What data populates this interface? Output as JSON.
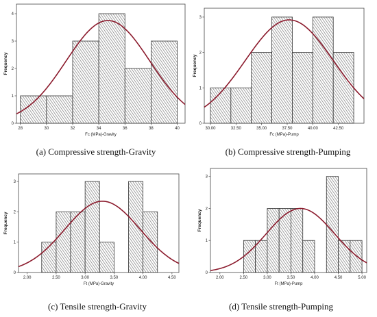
{
  "colors": {
    "curve": "#8b1a2c",
    "bar_edge": "#333333",
    "hatch": "#8a8a8a"
  },
  "chart_data": [
    {
      "type": "bar",
      "xlabel": "Fc (MPa)-Gravity",
      "ylabel": "Frequency",
      "caption": "(a) Compressive strength-Gravity",
      "xlim": [
        27.7,
        40.6
      ],
      "ylim": [
        0,
        4.35
      ],
      "xticks": [
        "28",
        "30",
        "32",
        "34",
        "36",
        "38",
        "40"
      ],
      "yticks": [
        "0",
        "1",
        "2",
        "3",
        "4"
      ],
      "bins": [
        {
          "x0": 28.0,
          "x1": 30.0,
          "count": 1
        },
        {
          "x0": 30.0,
          "x1": 32.0,
          "count": 1
        },
        {
          "x0": 32.0,
          "x1": 34.0,
          "count": 3
        },
        {
          "x0": 34.0,
          "x1": 36.0,
          "count": 4
        },
        {
          "x0": 36.0,
          "x1": 38.0,
          "count": 2
        },
        {
          "x0": 38.0,
          "x1": 40.0,
          "count": 3
        }
      ],
      "normal_curve": {
        "mean": 34.7,
        "sd": 3.2,
        "peak": 3.75
      }
    },
    {
      "type": "bar",
      "xlabel": "Fc (MPa)-Pump",
      "ylabel": "Frequency",
      "caption": "(b) Compressive strength-Pumping",
      "xlim": [
        29.4,
        45.0
      ],
      "ylim": [
        0,
        3.25
      ],
      "xticks": [
        "30.00",
        "32.50",
        "35.00",
        "37.50",
        "40.00",
        "42.50"
      ],
      "yticks": [
        "0",
        "1",
        "2",
        "3"
      ],
      "bins": [
        {
          "x0": 30.0,
          "x1": 32.0,
          "count": 1
        },
        {
          "x0": 32.0,
          "x1": 34.0,
          "count": 1
        },
        {
          "x0": 34.0,
          "x1": 36.0,
          "count": 2
        },
        {
          "x0": 36.0,
          "x1": 38.0,
          "count": 3
        },
        {
          "x0": 38.0,
          "x1": 40.0,
          "count": 2
        },
        {
          "x0": 40.0,
          "x1": 42.0,
          "count": 3
        },
        {
          "x0": 42.0,
          "x1": 44.0,
          "count": 2
        }
      ],
      "normal_curve": {
        "mean": 37.7,
        "sd": 4.3,
        "peak": 2.92
      }
    },
    {
      "type": "bar",
      "xlabel": "Ft (MPa)-Gravity",
      "ylabel": "Frequency",
      "caption": "(c) Tensile strength-Gravity",
      "xlim": [
        1.85,
        4.62
      ],
      "ylim": [
        0,
        3.25
      ],
      "xticks": [
        "2.00",
        "2.50",
        "3.00",
        "3.50",
        "4.00",
        "4.50"
      ],
      "yticks": [
        "0",
        "1",
        "2",
        "3"
      ],
      "bins": [
        {
          "x0": 2.25,
          "x1": 2.5,
          "count": 1
        },
        {
          "x0": 2.5,
          "x1": 2.75,
          "count": 2
        },
        {
          "x0": 2.75,
          "x1": 3.0,
          "count": 2
        },
        {
          "x0": 3.0,
          "x1": 3.25,
          "count": 3
        },
        {
          "x0": 3.25,
          "x1": 3.5,
          "count": 1
        },
        {
          "x0": 3.75,
          "x1": 4.0,
          "count": 3
        },
        {
          "x0": 4.0,
          "x1": 4.25,
          "count": 2
        }
      ],
      "normal_curve": {
        "mean": 3.3,
        "sd": 0.65,
        "peak": 2.35
      }
    },
    {
      "type": "bar",
      "xlabel": "Ft (MPa)-Pump",
      "ylabel": "Frequency",
      "caption": "(d) Tensile strength-Pumping",
      "xlim": [
        1.8,
        5.1
      ],
      "ylim": [
        0,
        3.25
      ],
      "xticks": [
        "2.00",
        "2.50",
        "3.00",
        "3.50",
        "4.00",
        "4.50",
        "5.00"
      ],
      "yticks": [
        "0",
        "1",
        "2",
        "3"
      ],
      "bins": [
        {
          "x0": 2.5,
          "x1": 2.75,
          "count": 1
        },
        {
          "x0": 2.75,
          "x1": 3.0,
          "count": 1
        },
        {
          "x0": 3.0,
          "x1": 3.25,
          "count": 2
        },
        {
          "x0": 3.25,
          "x1": 3.5,
          "count": 2
        },
        {
          "x0": 3.5,
          "x1": 3.75,
          "count": 2
        },
        {
          "x0": 3.75,
          "x1": 4.0,
          "count": 1
        },
        {
          "x0": 4.25,
          "x1": 4.5,
          "count": 3
        },
        {
          "x0": 4.5,
          "x1": 4.75,
          "count": 1
        },
        {
          "x0": 4.75,
          "x1": 5.0,
          "count": 1
        }
      ],
      "normal_curve": {
        "mean": 3.7,
        "sd": 0.72,
        "peak": 2.0
      }
    }
  ]
}
